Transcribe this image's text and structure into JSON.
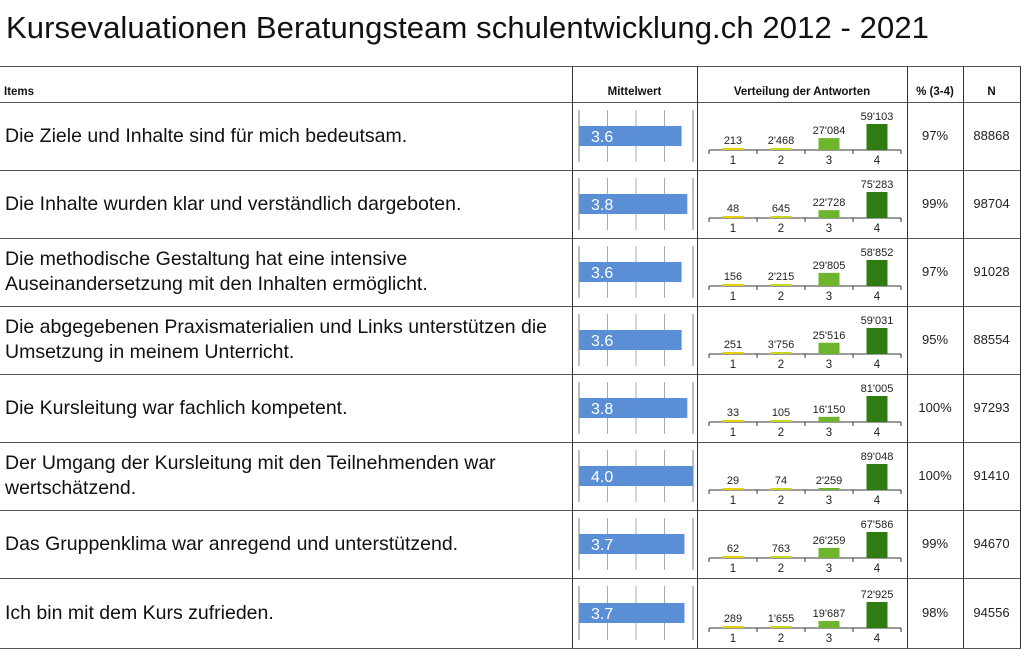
{
  "title": "Kursevaluationen Beratungsteam schulentwicklung.ch 2012 - 2021",
  "headers": {
    "items": "Items",
    "mean": "Mittelwert",
    "distribution": "Verteilung der Antworten",
    "percent": "% (3-4)",
    "n": "N"
  },
  "colors": {
    "mean_bar": "#5a8fd6",
    "dist_1": "#e6cf00",
    "dist_2": "#c9d61e",
    "dist_3": "#6cb52c",
    "dist_4": "#2f7c12",
    "scale_tick": "#aaaaaa",
    "grid_line": "#555555"
  },
  "chart_data": {
    "type": "table",
    "title": "Kursevaluationen Beratungsteam schulentwicklung.ch 2012 - 2021",
    "mean_scale": [
      0,
      4
    ],
    "distribution_categories": [
      "1",
      "2",
      "3",
      "4"
    ],
    "rows": [
      {
        "item": "Die Ziele und Inhalte sind für mich bedeutsam.",
        "mean": 3.6,
        "mean_label": "3.6",
        "counts": [
          213,
          2468,
          27084,
          59103
        ],
        "count_labels": [
          "213",
          "2'468",
          "27'084",
          "59'103"
        ],
        "percent": "97%",
        "n": "88868"
      },
      {
        "item": "Die Inhalte wurden klar und verständlich dargeboten.",
        "mean": 3.8,
        "mean_label": "3.8",
        "counts": [
          48,
          645,
          22728,
          75283
        ],
        "count_labels": [
          "48",
          "645",
          "22'728",
          "75'283"
        ],
        "percent": "99%",
        "n": "98704"
      },
      {
        "item": "Die methodische Gestaltung hat eine intensive Auseinandersetzung mit den Inhalten ermöglicht.",
        "mean": 3.6,
        "mean_label": "3.6",
        "counts": [
          156,
          2215,
          29805,
          58852
        ],
        "count_labels": [
          "156",
          "2'215",
          "29'805",
          "58'852"
        ],
        "percent": "97%",
        "n": "91028"
      },
      {
        "item": "Die abgegebenen Praxismaterialien und Links unterstützen die Umsetzung in meinem Unterricht.",
        "mean": 3.6,
        "mean_label": "3.6",
        "counts": [
          251,
          3756,
          25516,
          59031
        ],
        "count_labels": [
          "251",
          "3'756",
          "25'516",
          "59'031"
        ],
        "percent": "95%",
        "n": "88554"
      },
      {
        "item": "Die Kursleitung war fachlich kompetent.",
        "mean": 3.8,
        "mean_label": "3.8",
        "counts": [
          33,
          105,
          16150,
          81005
        ],
        "count_labels": [
          "33",
          "105",
          "16'150",
          "81'005"
        ],
        "percent": "100%",
        "n": "97293"
      },
      {
        "item": "Der Umgang der Kursleitung mit den Teilnehmenden war wertschätzend.",
        "mean": 4.0,
        "mean_label": "4.0",
        "counts": [
          29,
          74,
          2259,
          89048
        ],
        "count_labels": [
          "29",
          "74",
          "2'259",
          "89'048"
        ],
        "percent": "100%",
        "n": "91410"
      },
      {
        "item": "Das Gruppenklima war anregend und unterstützend.",
        "mean": 3.7,
        "mean_label": "3.7",
        "counts": [
          62,
          763,
          26259,
          67586
        ],
        "count_labels": [
          "62",
          "763",
          "26'259",
          "67'586"
        ],
        "percent": "99%",
        "n": "94670"
      },
      {
        "item": "Ich bin mit dem Kurs zufrieden.",
        "mean": 3.7,
        "mean_label": "3.7",
        "counts": [
          289,
          1655,
          19687,
          72925
        ],
        "count_labels": [
          "289",
          "1'655",
          "19'687",
          "72'925"
        ],
        "percent": "98%",
        "n": "94556"
      }
    ]
  }
}
